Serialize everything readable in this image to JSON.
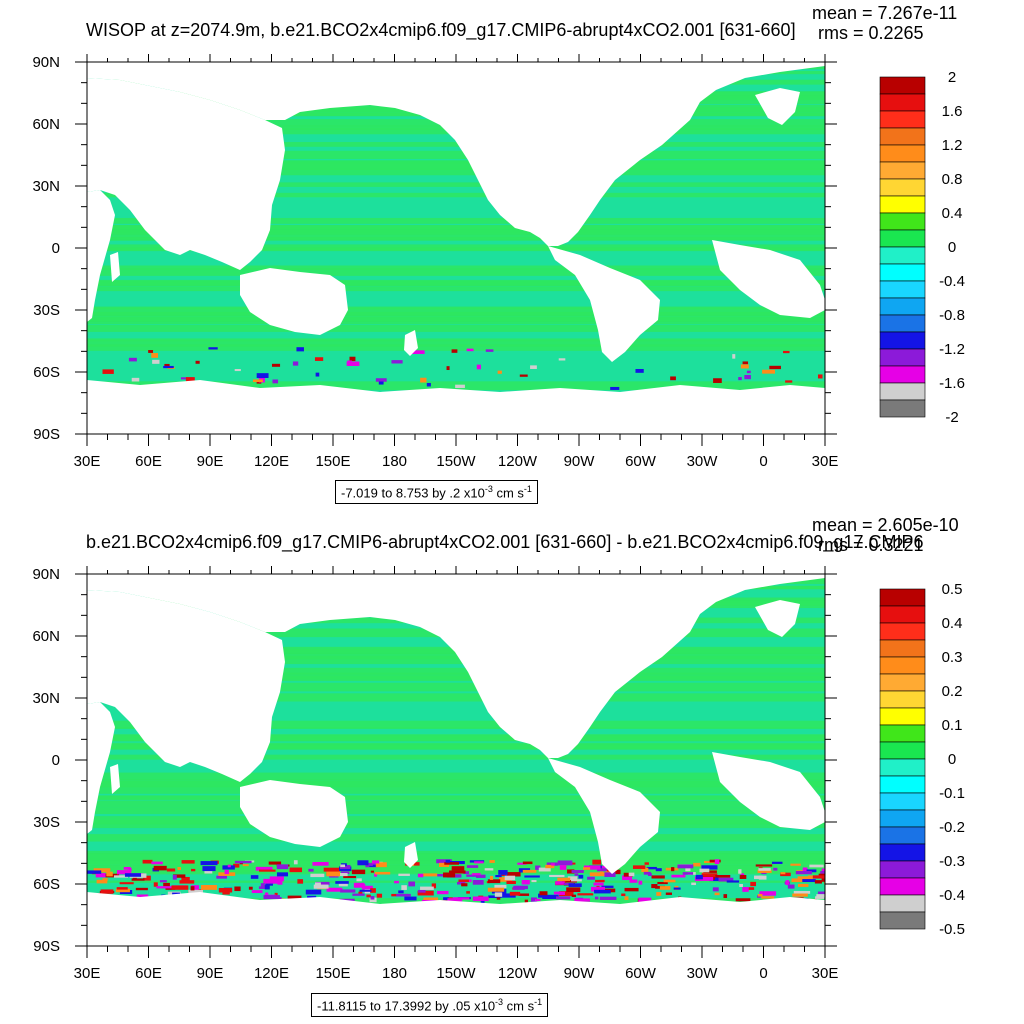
{
  "chart_data": [
    {
      "type": "heatmap",
      "title": "WISOP at z=2074.9m, b.e21.BCO2x4cmip6.f09_g17.CMIP6-abrupt4xCO2.001 [631-660]",
      "mean_label": "mean = 7.267e-11",
      "rms_label": "rms = 0.2265",
      "x_ticks": [
        "30E",
        "60E",
        "90E",
        "120E",
        "150E",
        "180",
        "150W",
        "120W",
        "90W",
        "60W",
        "30W",
        "0",
        "30E"
      ],
      "y_ticks": [
        "90N",
        "60N",
        "30N",
        "0",
        "30S",
        "60S",
        "90S"
      ],
      "xlim": [
        30,
        390
      ],
      "ylim": [
        -90,
        90
      ],
      "colorbar_labels": [
        "2",
        "1.6",
        "1.2",
        "0.8",
        "0.4",
        "0",
        "-0.4",
        "-0.8",
        "-1.2",
        "-1.6",
        "-2"
      ],
      "clim": [
        -2,
        2
      ],
      "info_range": "-7.019 to 8.753 by .2 x10",
      "info_exp": "-3",
      "info_units": " cm s",
      "info_units_exp": "-1"
    },
    {
      "type": "heatmap",
      "title": "b.e21.BCO2x4cmip6.f09_g17.CMIP6-abrupt4xCO2.001 [631-660] - b.e21.BCO2x4cmip6.f09_g17.CMIP6",
      "mean_label": "mean = 2.605e-10",
      "rms_label": "rms = 0.3221",
      "x_ticks": [
        "30E",
        "60E",
        "90E",
        "120E",
        "150E",
        "180",
        "150W",
        "120W",
        "90W",
        "60W",
        "30W",
        "0",
        "30E"
      ],
      "y_ticks": [
        "90N",
        "60N",
        "30N",
        "0",
        "30S",
        "60S",
        "90S"
      ],
      "xlim": [
        30,
        390
      ],
      "ylim": [
        -90,
        90
      ],
      "colorbar_labels": [
        "0.5",
        "0.4",
        "0.3",
        "0.2",
        "0.1",
        "0",
        "-0.1",
        "-0.2",
        "-0.3",
        "-0.4",
        "-0.5"
      ],
      "clim": [
        -0.5,
        0.5
      ],
      "info_range": "-11.8115 to 17.3992 by .05 x10",
      "info_exp": "-3",
      "info_units": " cm s",
      "info_units_exp": "-1"
    }
  ],
  "colors": {
    "colorbar": [
      "#7a7a7a",
      "#cfcfcf",
      "#e600e6",
      "#8c1ad9",
      "#1414e6",
      "#1a73e6",
      "#0fa6f2",
      "#19d6ff",
      "#00ffff",
      "#20f0c8",
      "#1ae650",
      "#40e61a",
      "#ffff00",
      "#ffd633",
      "#ffaa33",
      "#ff8c1a",
      "#f2731a",
      "#ff2e1a",
      "#e60f0f",
      "#b80000"
    ],
    "ocean_fill": "#1de09c",
    "ocean_band": "#2ee660"
  }
}
